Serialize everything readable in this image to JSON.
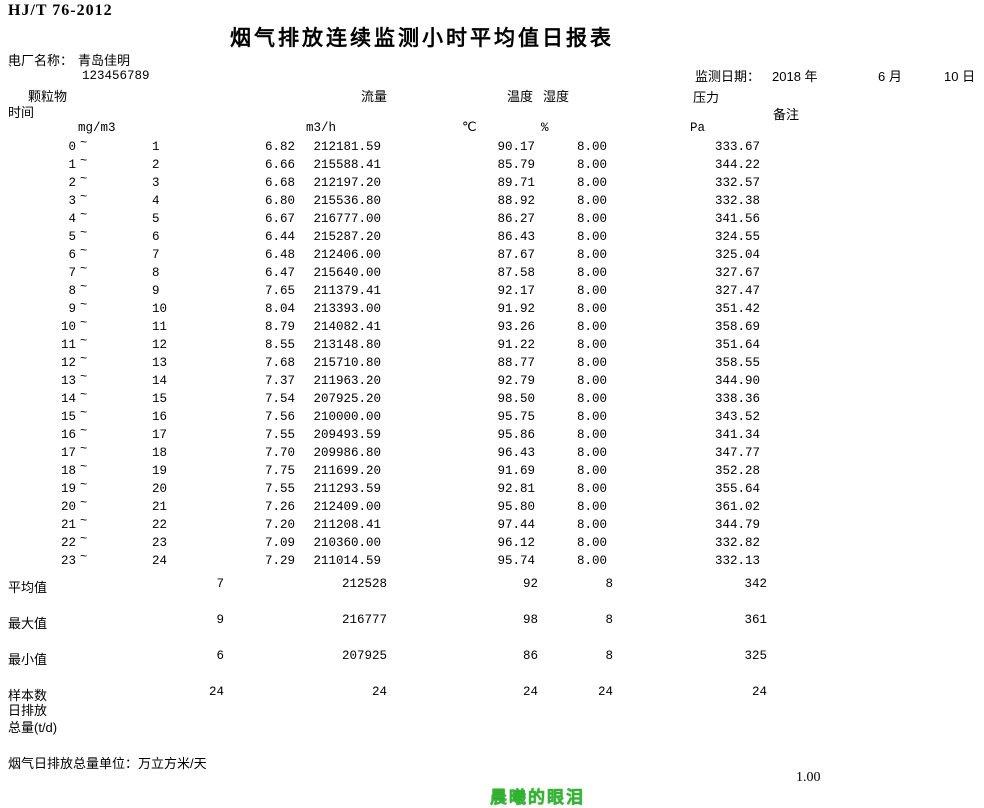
{
  "doc": {
    "standard": "HJ/T 76-2012",
    "title": "烟气排放连续监测小时平均值日报表",
    "plant_label": "电厂名称：",
    "plant_name": "青岛佳明",
    "tick": "`",
    "plant_code": "123456789",
    "date_label": "监测日期：",
    "date_year": "2018 年",
    "date_month": "6 月",
    "date_day": "10 日"
  },
  "columns": {
    "time": "时间",
    "pm": "颗粒物",
    "flow": "流量",
    "temp": "温度",
    "hum": "湿度",
    "press": "压力",
    "remark": "备注"
  },
  "units": {
    "pm": "mg/m3",
    "flow": "m3/h",
    "temp": "℃",
    "hum": "%",
    "press": "Pa"
  },
  "tilde": "~",
  "rows": [
    {
      "from": "0",
      "to": "1",
      "pm": "6.82",
      "flow": "212181.59",
      "temp": "90.17",
      "hum": "8.00",
      "press": "333.67"
    },
    {
      "from": "1",
      "to": "2",
      "pm": "6.66",
      "flow": "215588.41",
      "temp": "85.79",
      "hum": "8.00",
      "press": "344.22"
    },
    {
      "from": "2",
      "to": "3",
      "pm": "6.68",
      "flow": "212197.20",
      "temp": "89.71",
      "hum": "8.00",
      "press": "332.57"
    },
    {
      "from": "3",
      "to": "4",
      "pm": "6.80",
      "flow": "215536.80",
      "temp": "88.92",
      "hum": "8.00",
      "press": "332.38"
    },
    {
      "from": "4",
      "to": "5",
      "pm": "6.67",
      "flow": "216777.00",
      "temp": "86.27",
      "hum": "8.00",
      "press": "341.56"
    },
    {
      "from": "5",
      "to": "6",
      "pm": "6.44",
      "flow": "215287.20",
      "temp": "86.43",
      "hum": "8.00",
      "press": "324.55"
    },
    {
      "from": "6",
      "to": "7",
      "pm": "6.48",
      "flow": "212406.00",
      "temp": "87.67",
      "hum": "8.00",
      "press": "325.04"
    },
    {
      "from": "7",
      "to": "8",
      "pm": "6.47",
      "flow": "215640.00",
      "temp": "87.58",
      "hum": "8.00",
      "press": "327.67"
    },
    {
      "from": "8",
      "to": "9",
      "pm": "7.65",
      "flow": "211379.41",
      "temp": "92.17",
      "hum": "8.00",
      "press": "327.47"
    },
    {
      "from": "9",
      "to": "10",
      "pm": "8.04",
      "flow": "213393.00",
      "temp": "91.92",
      "hum": "8.00",
      "press": "351.42"
    },
    {
      "from": "10",
      "to": "11",
      "pm": "8.79",
      "flow": "214082.41",
      "temp": "93.26",
      "hum": "8.00",
      "press": "358.69"
    },
    {
      "from": "11",
      "to": "12",
      "pm": "8.55",
      "flow": "213148.80",
      "temp": "91.22",
      "hum": "8.00",
      "press": "351.64"
    },
    {
      "from": "12",
      "to": "13",
      "pm": "7.68",
      "flow": "215710.80",
      "temp": "88.77",
      "hum": "8.00",
      "press": "358.55"
    },
    {
      "from": "13",
      "to": "14",
      "pm": "7.37",
      "flow": "211963.20",
      "temp": "92.79",
      "hum": "8.00",
      "press": "344.90"
    },
    {
      "from": "14",
      "to": "15",
      "pm": "7.54",
      "flow": "207925.20",
      "temp": "98.50",
      "hum": "8.00",
      "press": "338.36"
    },
    {
      "from": "15",
      "to": "16",
      "pm": "7.56",
      "flow": "210000.00",
      "temp": "95.75",
      "hum": "8.00",
      "press": "343.52"
    },
    {
      "from": "16",
      "to": "17",
      "pm": "7.55",
      "flow": "209493.59",
      "temp": "95.86",
      "hum": "8.00",
      "press": "341.34"
    },
    {
      "from": "17",
      "to": "18",
      "pm": "7.70",
      "flow": "209986.80",
      "temp": "96.43",
      "hum": "8.00",
      "press": "347.77"
    },
    {
      "from": "18",
      "to": "19",
      "pm": "7.75",
      "flow": "211699.20",
      "temp": "91.69",
      "hum": "8.00",
      "press": "352.28"
    },
    {
      "from": "19",
      "to": "20",
      "pm": "7.55",
      "flow": "211293.59",
      "temp": "92.81",
      "hum": "8.00",
      "press": "355.64"
    },
    {
      "from": "20",
      "to": "21",
      "pm": "7.26",
      "flow": "212409.00",
      "temp": "95.80",
      "hum": "8.00",
      "press": "361.02"
    },
    {
      "from": "21",
      "to": "22",
      "pm": "7.20",
      "flow": "211208.41",
      "temp": "97.44",
      "hum": "8.00",
      "press": "344.79"
    },
    {
      "from": "22",
      "to": "23",
      "pm": "7.09",
      "flow": "210360.00",
      "temp": "96.12",
      "hum": "8.00",
      "press": "332.82"
    },
    {
      "from": "23",
      "to": "24",
      "pm": "7.29",
      "flow": "211014.59",
      "temp": "95.74",
      "hum": "8.00",
      "press": "332.13"
    }
  ],
  "summary": [
    {
      "label": "平均值",
      "pm": "7",
      "flow": "212528",
      "temp": "92",
      "hum": "8",
      "press": "342"
    },
    {
      "label": "最大值",
      "pm": "9",
      "flow": "216777",
      "temp": "98",
      "hum": "8",
      "press": "361"
    },
    {
      "label": "最小值",
      "pm": "6",
      "flow": "207925",
      "temp": "86",
      "hum": "8",
      "press": "325"
    },
    {
      "label": "样本数",
      "pm": "24",
      "flow": "24",
      "temp": "24",
      "hum": "24",
      "press": "24"
    }
  ],
  "footer": {
    "daily1": "日排放",
    "daily2": "总量(t/d)",
    "unit_note": "烟气日排放总量单位：万立方米/天",
    "scale": "1.00",
    "watermark": "晨曦的眼泪"
  }
}
